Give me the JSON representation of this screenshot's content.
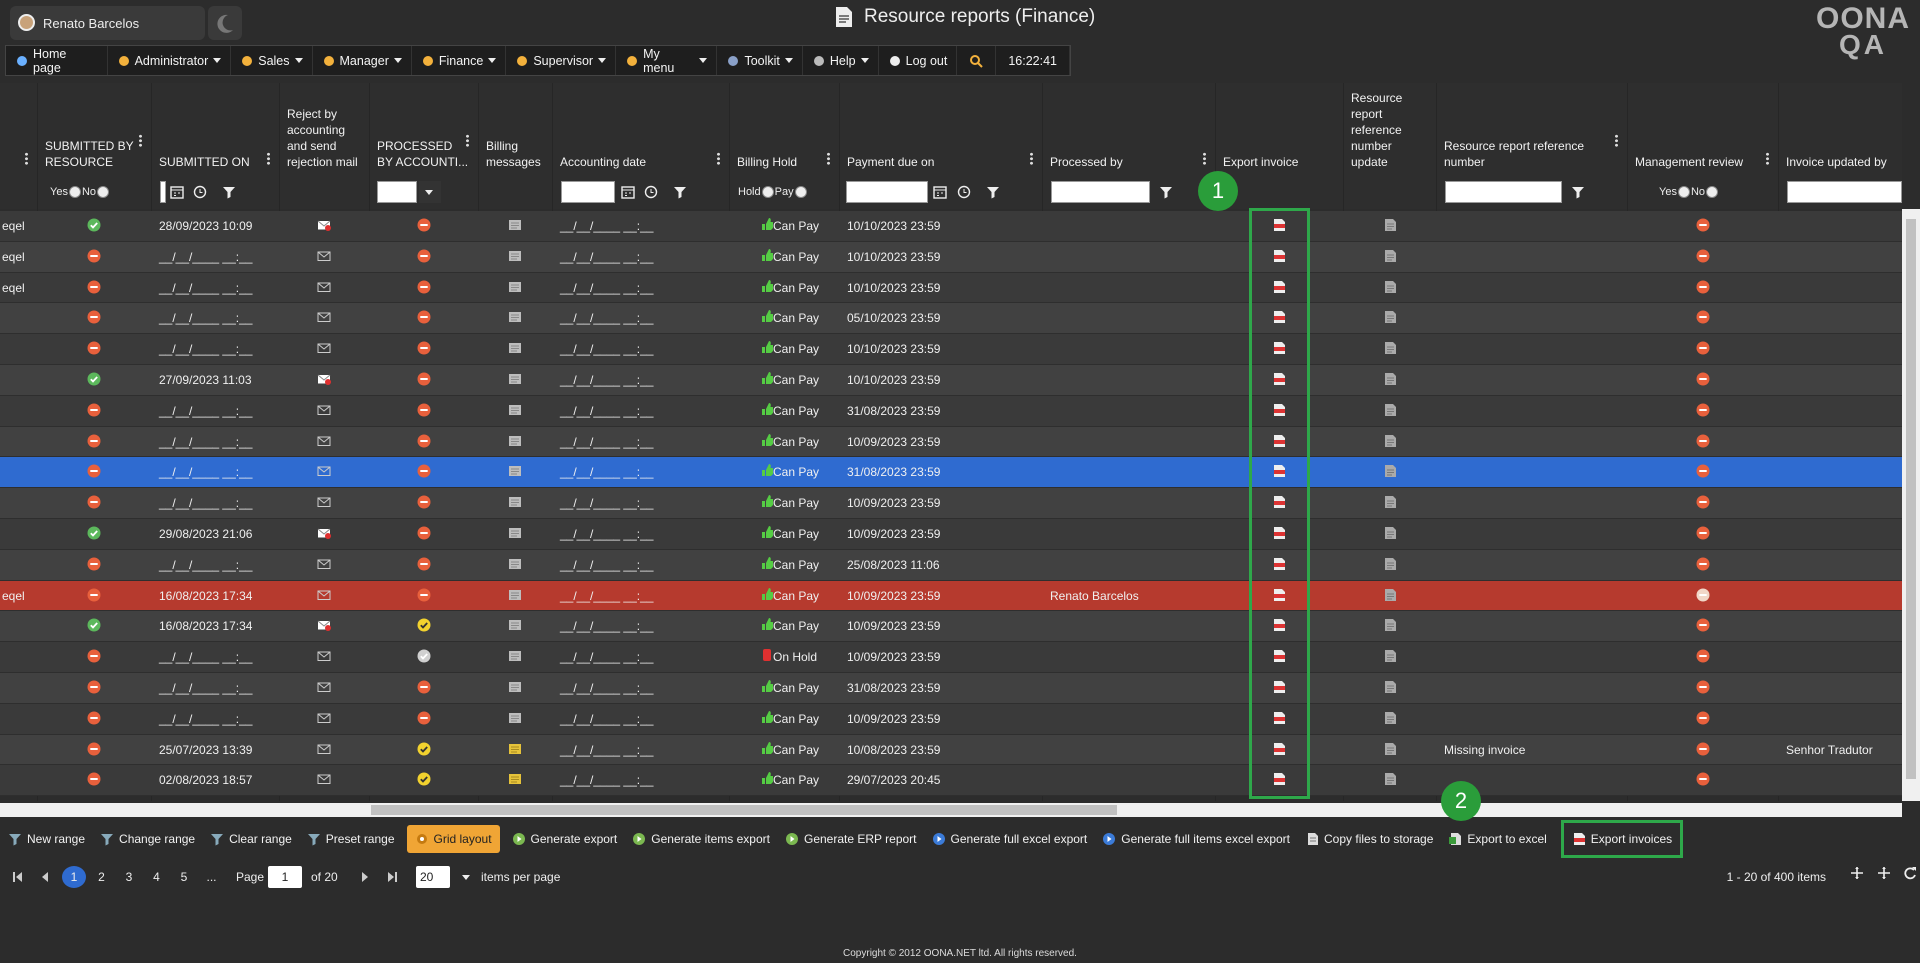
{
  "header": {
    "user": "Renato Barcelos",
    "title": "Resource reports (Finance)",
    "logo": [
      "OONA",
      "QA"
    ]
  },
  "nav": {
    "items": [
      "Home page",
      "Administrator",
      "Sales",
      "Manager",
      "Finance",
      "Supervisor",
      "My menu",
      "Toolkit",
      "Help",
      "Log out"
    ],
    "time": "16:22:41"
  },
  "table": {
    "columns": [
      null,
      "SUBMITTED BY RESOURCE",
      "SUBMITTED ON",
      "Reject by accounting and send rejection mail",
      "PROCESSED BY ACCOUNTI...",
      "Billing messages",
      "Accounting date",
      "Billing Hold",
      "Payment due on",
      "Processed by",
      "Export invoice",
      "Resource report reference number update",
      "Resource report reference number",
      "Management review",
      "Invoice updated by"
    ],
    "filters": {
      "yes": "Yes",
      "no": "No",
      "hold": "Hold",
      "pay": "Pay"
    },
    "rows": [
      [
        "eqel",
        "28/09/2023 10:09",
        "__/__/____ __:__",
        "Can Pay",
        "10/10/2023 23:59",
        null,
        null,
        null
      ],
      [
        "eqel",
        "__/__/____ __:__",
        "__/__/____ __:__",
        "Can Pay",
        "10/10/2023 23:59",
        null,
        null,
        null
      ],
      [
        "eqel",
        "__/__/____ __:__",
        "__/__/____ __:__",
        "Can Pay",
        "10/10/2023 23:59",
        null,
        null,
        null
      ],
      [
        null,
        "__/__/____ __:__",
        "__/__/____ __:__",
        "Can Pay",
        "05/10/2023 23:59",
        null,
        null,
        null
      ],
      [
        null,
        "__/__/____ __:__",
        "__/__/____ __:__",
        "Can Pay",
        "10/10/2023 23:59",
        null,
        null,
        null
      ],
      [
        null,
        "27/09/2023 11:03",
        "__/__/____ __:__",
        "Can Pay",
        "10/10/2023 23:59",
        null,
        null,
        null
      ],
      [
        null,
        "__/__/____ __:__",
        "__/__/____ __:__",
        "Can Pay",
        "31/08/2023 23:59",
        null,
        null,
        null
      ],
      [
        null,
        "__/__/____ __:__",
        "__/__/____ __:__",
        "Can Pay",
        "10/09/2023 23:59",
        null,
        null,
        null
      ],
      [
        null,
        "__/__/____ __:__",
        "__/__/____ __:__",
        "Can Pay",
        "31/08/2023 23:59",
        null,
        null,
        null
      ],
      [
        null,
        "__/__/____ __:__",
        "__/__/____ __:__",
        "Can Pay",
        "10/09/2023 23:59",
        null,
        null,
        null
      ],
      [
        null,
        "29/08/2023 21:06",
        "__/__/____ __:__",
        "Can Pay",
        "10/09/2023 23:59",
        null,
        null,
        null
      ],
      [
        null,
        "__/__/____ __:__",
        "__/__/____ __:__",
        "Can Pay",
        "25/08/2023 11:06",
        null,
        null,
        null
      ],
      [
        "eqel",
        "16/08/2023 17:34",
        "__/__/____ __:__",
        "Can Pay",
        "10/09/2023 23:59",
        "Renato Barcelos",
        null,
        null
      ],
      [
        null,
        "16/08/2023 17:34",
        "__/__/____ __:__",
        "Can Pay",
        "10/09/2023 23:59",
        null,
        null,
        null
      ],
      [
        null,
        "__/__/____ __:__",
        "__/__/____ __:__",
        "On Hold",
        "10/09/2023 23:59",
        null,
        null,
        null
      ],
      [
        null,
        "__/__/____ __:__",
        "__/__/____ __:__",
        "Can Pay",
        "31/08/2023 23:59",
        null,
        null,
        null
      ],
      [
        null,
        "__/__/____ __:__",
        "__/__/____ __:__",
        "Can Pay",
        "10/09/2023 23:59",
        null,
        null,
        null
      ],
      [
        null,
        "25/07/2023 13:39",
        "__/__/____ __:__",
        "Can Pay",
        "10/08/2023 23:59",
        null,
        "Missing invoice",
        "Senhor Tradutor"
      ],
      [
        null,
        "02/08/2023 18:57",
        "__/__/____ __:__",
        "Can Pay",
        "29/07/2023 20:45",
        null,
        null,
        null
      ]
    ]
  },
  "annotations": [
    "1",
    "2"
  ],
  "toolbar": [
    "New range",
    "Change range",
    "Clear range",
    "Preset range",
    "Grid layout",
    "Generate export",
    "Generate items export",
    "Generate ERP report",
    "Generate full excel export",
    "Generate full items excel export",
    "Copy files to storage",
    "Export to excel",
    "Export invoices"
  ],
  "pager": {
    "pages": [
      "1",
      "2",
      "3",
      "4",
      "5",
      "..."
    ],
    "page_label": "Page",
    "page_input": "1",
    "of": "of 20",
    "page_size": "20",
    "per_page": "items per page",
    "summary": "1 - 20 of 400 items"
  },
  "footer": "Copyright © 2012 OONA.NET ltd. All rights reserved."
}
